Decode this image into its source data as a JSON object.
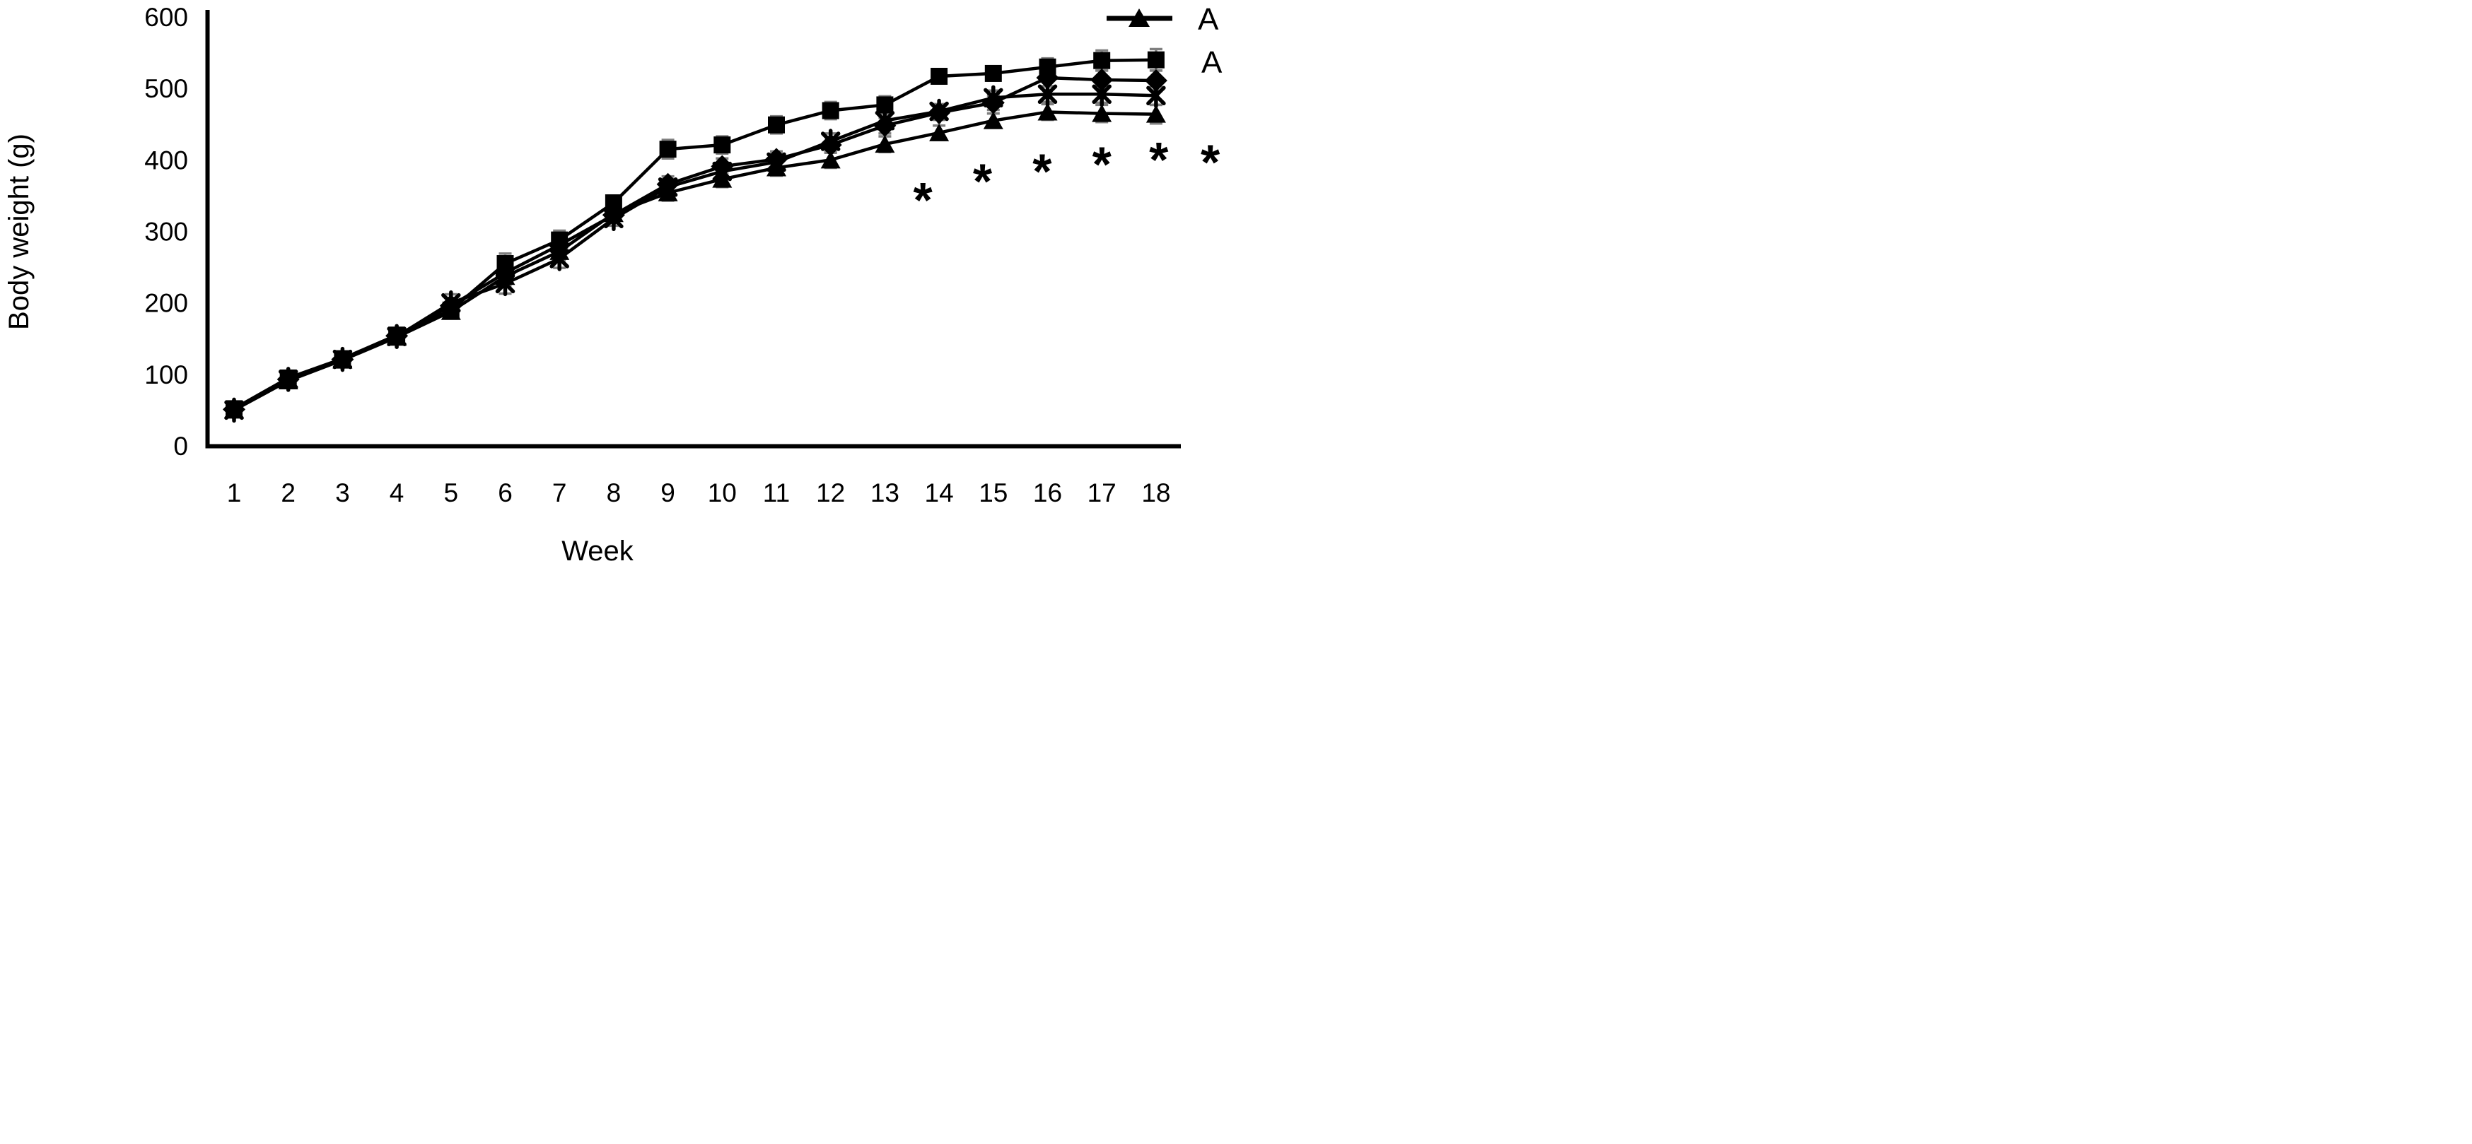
{
  "figure": {
    "background": "#ffffff",
    "series_color": "#000000",
    "axis_color": "#000000",
    "error_bar_color": "#7f7f7f"
  },
  "chart_data": {
    "type": "line",
    "title": "",
    "xlabel": "Week",
    "ylabel": "Body weight (g)",
    "x": [
      1,
      2,
      3,
      4,
      5,
      6,
      7,
      8,
      9,
      10,
      11,
      12,
      13,
      14,
      15,
      16,
      17,
      18
    ],
    "xlim": [
      0.5,
      19.2
    ],
    "ylim": [
      0,
      600
    ],
    "yticks": [
      0,
      100,
      200,
      300,
      400,
      500,
      600
    ],
    "grid": false,
    "error_bars": true,
    "legend_position": "top-right",
    "series": [
      {
        "id": "triangle-series",
        "marker": "triangle",
        "legend_label": "A",
        "values": [
          50,
          91,
          120,
          152,
          188,
          237,
          272,
          325,
          354,
          373,
          389,
          400,
          422,
          438,
          455,
          467,
          465,
          464
        ],
        "sem": [
          4,
          5,
          4,
          5,
          10,
          13,
          12,
          10,
          11,
          11,
          11,
          11,
          11,
          10,
          10,
          11,
          12,
          13
        ]
      },
      {
        "id": "x-asterisk-series",
        "marker": "x-asterisk",
        "legend_label": "",
        "values": [
          50,
          93,
          121,
          153,
          200,
          227,
          262,
          318,
          362,
          384,
          397,
          426,
          455,
          468,
          487,
          492,
          492,
          490
        ],
        "sem": [
          4,
          5,
          4,
          5,
          12,
          14,
          13,
          10,
          11,
          11,
          11,
          11,
          11,
          10,
          10,
          11,
          12,
          13
        ]
      },
      {
        "id": "diamond-series",
        "marker": "diamond",
        "legend_label": "",
        "values": [
          51,
          93,
          121,
          154,
          196,
          242,
          281,
          323,
          366,
          391,
          401,
          421,
          448,
          466,
          480,
          515,
          512,
          511
        ],
        "sem": [
          4,
          5,
          4,
          5,
          11,
          13,
          12,
          10,
          11,
          11,
          11,
          11,
          11,
          10,
          10,
          12,
          13,
          14
        ]
      },
      {
        "id": "square-series",
        "marker": "square",
        "legend_label": "",
        "values": [
          52,
          95,
          122,
          155,
          190,
          255,
          288,
          340,
          415,
          421,
          449,
          469,
          477,
          517,
          521,
          530,
          539,
          540
        ],
        "sem": [
          4,
          5,
          4,
          5,
          10,
          14,
          13,
          10,
          13,
          12,
          12,
          12,
          12,
          10,
          10,
          12,
          14,
          15
        ]
      }
    ],
    "annotations": {
      "symbol": "*",
      "points": [
        {
          "week": 13.7,
          "value": 352
        },
        {
          "week": 14.8,
          "value": 378
        },
        {
          "week": 15.9,
          "value": 392
        },
        {
          "week": 17.0,
          "value": 402
        },
        {
          "week": 18.05,
          "value": 408
        },
        {
          "week": 19.0,
          "value": 405
        }
      ]
    },
    "legend": [
      {
        "label": "A",
        "marker": "triangle-line"
      },
      {
        "label": "A",
        "marker": "none"
      }
    ]
  }
}
